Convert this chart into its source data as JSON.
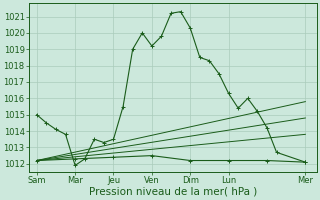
{
  "background_color": "#cce8dc",
  "grid_color": "#aaccbc",
  "line_color": "#1a5c1a",
  "xlabel": "Pression niveau de la mer( hPa )",
  "xlabel_fontsize": 7.5,
  "ylabel_fontsize": 6,
  "ylim": [
    1011.5,
    1021.8
  ],
  "yticks": [
    1012,
    1013,
    1014,
    1015,
    1016,
    1017,
    1018,
    1019,
    1020,
    1021
  ],
  "x_day_labels": [
    "Sam",
    "Mar",
    "Jeu",
    "Ven",
    "Dim",
    "Lun",
    "Mer"
  ],
  "x_day_positions": [
    0,
    24,
    48,
    72,
    96,
    120,
    168
  ],
  "xlim": [
    -5,
    175
  ],
  "series1_x": [
    0,
    6,
    12,
    18,
    24,
    30,
    36,
    42,
    48,
    54,
    60,
    66,
    72,
    78,
    84,
    90,
    96,
    102,
    108,
    114,
    120,
    126,
    132,
    138,
    144,
    150,
    168
  ],
  "series1_y": [
    1015.0,
    1014.5,
    1014.1,
    1013.8,
    1011.9,
    1012.3,
    1013.5,
    1013.3,
    1013.5,
    1015.5,
    1019.0,
    1020.0,
    1019.2,
    1019.8,
    1021.2,
    1021.3,
    1020.3,
    1018.5,
    1018.3,
    1017.5,
    1016.3,
    1015.4,
    1016.0,
    1015.2,
    1014.2,
    1012.7,
    1012.1
  ],
  "series2_x": [
    0,
    24,
    48,
    72,
    96,
    120,
    144,
    168
  ],
  "series2_y": [
    1012.2,
    1012.3,
    1012.4,
    1012.5,
    1012.2,
    1012.2,
    1012.2,
    1012.1
  ],
  "series3_x": [
    0,
    168
  ],
  "series3_y": [
    1012.2,
    1015.8
  ],
  "series4_x": [
    0,
    168
  ],
  "series4_y": [
    1012.2,
    1014.8
  ],
  "series5_x": [
    0,
    168
  ],
  "series5_y": [
    1012.2,
    1013.8
  ]
}
